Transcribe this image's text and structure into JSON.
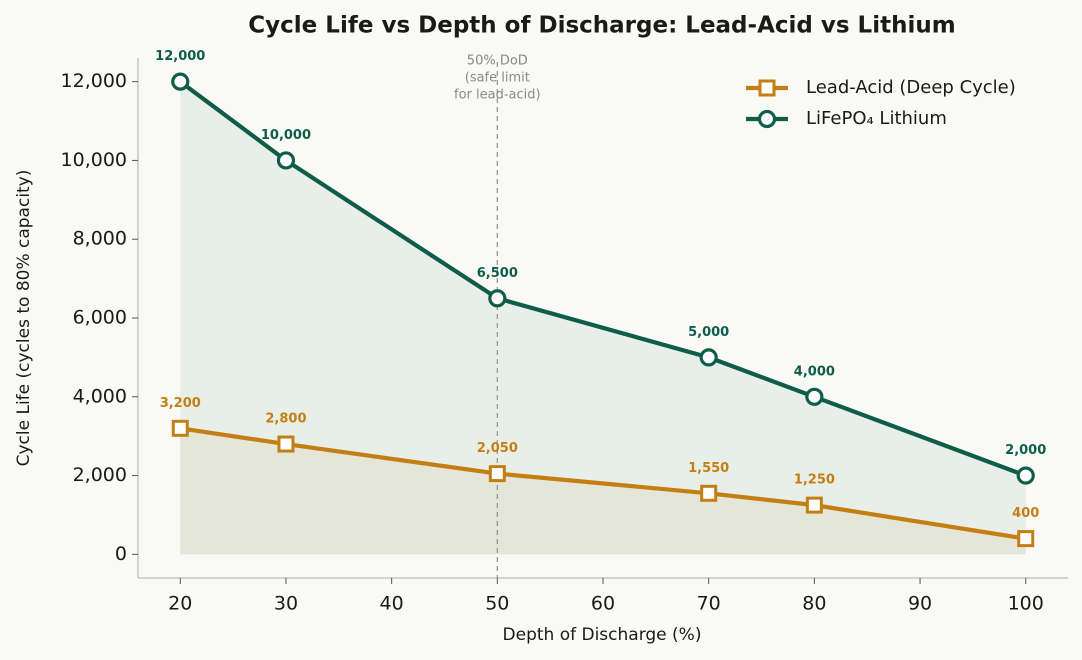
{
  "chart_data": {
    "type": "line",
    "title": "Cycle Life vs Depth of Discharge: Lead-Acid vs Lithium",
    "x_label": "Depth of Discharge (%)",
    "y_label": "Cycle Life (cycles to 80% capacity)",
    "x": [
      20,
      30,
      50,
      70,
      80,
      100
    ],
    "series": [
      {
        "name": "Lead-Acid (Deep Cycle)",
        "color": "#c47f14",
        "marker": "square",
        "values": [
          3200,
          2800,
          2050,
          1550,
          1250,
          400
        ],
        "value_labels": [
          "3,200",
          "2,800",
          "2,050",
          "1,550",
          "1,250",
          "400"
        ]
      },
      {
        "name": "LiFePO₄ Lithium",
        "color": "#0f5c4a",
        "marker": "circle",
        "values": [
          12000,
          10000,
          6500,
          5000,
          4000,
          2000
        ],
        "value_labels": [
          "12,000",
          "10,000",
          "6,500",
          "5,000",
          "4,000",
          "2,000"
        ]
      }
    ],
    "xlim": [
      16,
      104
    ],
    "xticks": [
      20,
      30,
      40,
      50,
      60,
      70,
      80,
      90,
      100
    ],
    "ylim": [
      -600,
      12600
    ],
    "yticks": [
      0,
      {
        "value": 2000,
        "label": "2,000"
      },
      {
        "value": 4000,
        "label": "4,000"
      },
      {
        "value": 6000,
        "label": "6,000"
      },
      {
        "value": 8000,
        "label": "8,000"
      },
      {
        "value": 10000,
        "label": "10,000"
      },
      {
        "value": 12000,
        "label": "12,000"
      }
    ],
    "annotation": {
      "x": 50,
      "lines": [
        "50% DoD",
        "(safe limit",
        "for lead-acid)"
      ]
    },
    "legend": "upper right",
    "grid": false,
    "area_fill": true
  }
}
